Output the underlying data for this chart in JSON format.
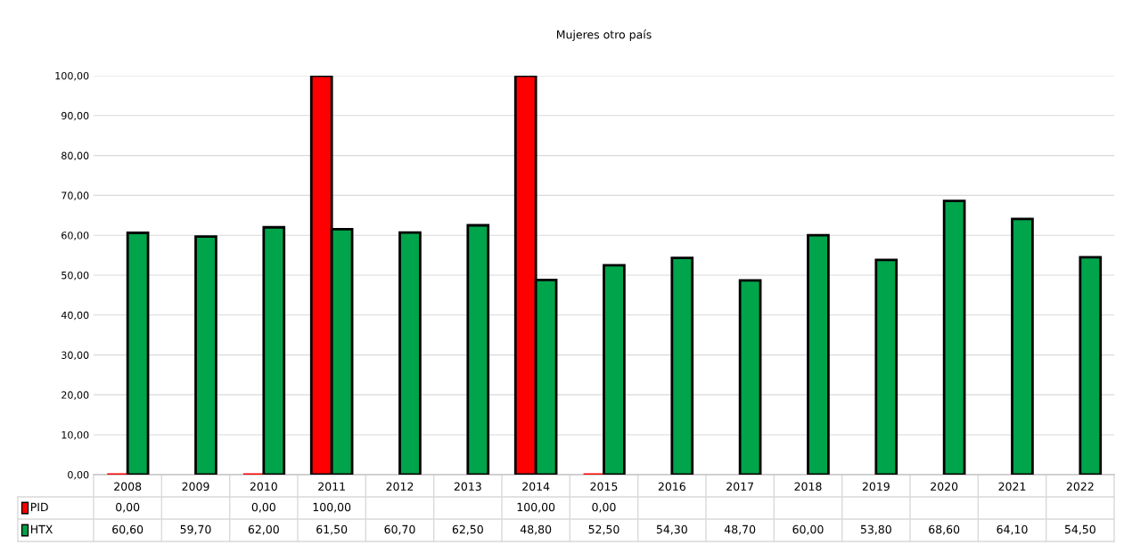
{
  "chart_data": {
    "type": "bar",
    "title": "Mujeres otro país",
    "categories": [
      "2008",
      "2009",
      "2010",
      "2011",
      "2012",
      "2013",
      "2014",
      "2015",
      "2016",
      "2017",
      "2018",
      "2019",
      "2020",
      "2021",
      "2022"
    ],
    "series": [
      {
        "name": "PID",
        "color": "#ff0000",
        "values": [
          0,
          null,
          0,
          100,
          null,
          null,
          100,
          0,
          null,
          null,
          null,
          null,
          null,
          null,
          null
        ],
        "value_labels": [
          "0,00",
          null,
          "0,00",
          "100,00",
          null,
          null,
          "100,00",
          "0,00",
          null,
          null,
          null,
          null,
          null,
          null,
          null
        ]
      },
      {
        "name": "HTX",
        "color": "#00a44a",
        "values": [
          60.6,
          59.7,
          62,
          61.5,
          60.7,
          62.5,
          48.8,
          52.5,
          54.3,
          48.7,
          60,
          53.8,
          68.6,
          64.1,
          54.5
        ],
        "value_labels": [
          "60,60",
          "59,70",
          "62,00",
          "61,50",
          "60,70",
          "62,50",
          "48,80",
          "52,50",
          "54,30",
          "48,70",
          "60,00",
          "53,80",
          "68,60",
          "64,10",
          "54,50"
        ]
      }
    ],
    "ylim": [
      0,
      100
    ],
    "yticks": [
      {
        "value": 0,
        "label": "0,00"
      },
      {
        "value": 10,
        "label": "10,00"
      },
      {
        "value": 20,
        "label": "20,00"
      },
      {
        "value": 30,
        "label": "30,00"
      },
      {
        "value": 40,
        "label": "40,00"
      },
      {
        "value": 50,
        "label": "50,00"
      },
      {
        "value": 60,
        "label": "60,00"
      },
      {
        "value": 70,
        "label": "70,00"
      },
      {
        "value": 80,
        "label": "80,00"
      },
      {
        "value": 90,
        "label": "90,00"
      },
      {
        "value": 100,
        "label": "100,00"
      }
    ],
    "grid": "y",
    "legend": "bottom"
  }
}
